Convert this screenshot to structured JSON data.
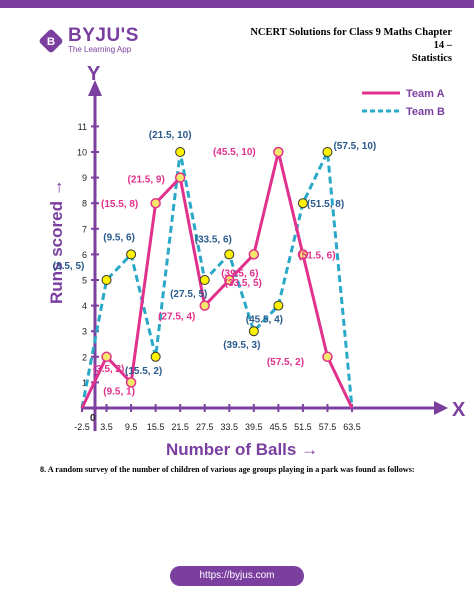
{
  "header": {
    "logo_letter": "B",
    "logo_name": "BYJU'S",
    "logo_tagline": "The Learning App",
    "title_line1": "NCERT Solutions for Class 9 Maths Chapter 14 –",
    "title_line2": "Statistics"
  },
  "colors": {
    "brand": "#7b3fa0",
    "team_a": "#e0318c",
    "team_b": "#2aa8c8",
    "axis": "#7b3fa0",
    "marker_fill": "#fff200",
    "marker_a_fill": "#f6e66a",
    "label_a": "#e0318c",
    "label_b": "#2a5a8c"
  },
  "chart_data": {
    "type": "line",
    "xlabel": "Number of Balls",
    "ylabel": "Runs scored",
    "x_axis_letter": "X",
    "y_axis_letter": "Y",
    "origin_label": "0",
    "x_ticks": [
      "-2.5",
      "3.5",
      "9.5",
      "15.5",
      "21.5",
      "27.5",
      "33.5",
      "39.5",
      "45.5",
      "51.5",
      "57.5",
      "63.5"
    ],
    "x_tick_values": [
      -2.5,
      3.5,
      9.5,
      15.5,
      21.5,
      27.5,
      33.5,
      39.5,
      45.5,
      51.5,
      57.5,
      63.5
    ],
    "y_ticks": [
      1,
      2,
      3,
      4,
      5,
      6,
      7,
      8,
      9,
      10,
      11
    ],
    "xlim": [
      -2.5,
      63.5
    ],
    "ylim": [
      0,
      11
    ],
    "legend_position": "top-right",
    "series": [
      {
        "name": "Team A",
        "style": "solid",
        "x": [
          -2.5,
          3.5,
          9.5,
          15.5,
          21.5,
          27.5,
          33.5,
          39.5,
          45.5,
          51.5,
          57.5,
          63.5
        ],
        "y": [
          0,
          2,
          1,
          8,
          9,
          4,
          5,
          6,
          10,
          6,
          2,
          0
        ],
        "labels": [
          "",
          "(3.5, 2)",
          "(9.5, 1)",
          "(15.5, 8)",
          "(21.5, 9)",
          "(27.5, 4)",
          "(33.5, 5)",
          "(39.5, 6)",
          "(45.5, 10)",
          "(51.5, 6)",
          "(57.5, 2)",
          ""
        ]
      },
      {
        "name": "Team B",
        "style": "dashed",
        "x": [
          -2.5,
          3.5,
          9.5,
          15.5,
          21.5,
          27.5,
          33.5,
          39.5,
          45.5,
          51.5,
          57.5,
          63.5
        ],
        "y": [
          0,
          5,
          6,
          2,
          10,
          5,
          6,
          3,
          4,
          8,
          10,
          0
        ],
        "labels": [
          "",
          "(3.5, 5)",
          "(9.5, 6)",
          "(15.5, 2)",
          "(21.5, 10)",
          "(27.5, 5)",
          "(33.5, 6)",
          "(39.5, 3)",
          "(45.5, 4)",
          "(51.5, 8)",
          "(57.5, 10)",
          ""
        ]
      }
    ]
  },
  "question": "8. A random survey of the number of children of various age groups playing in a park was found as follows:",
  "footer": {
    "url": "https://byjus.com"
  }
}
